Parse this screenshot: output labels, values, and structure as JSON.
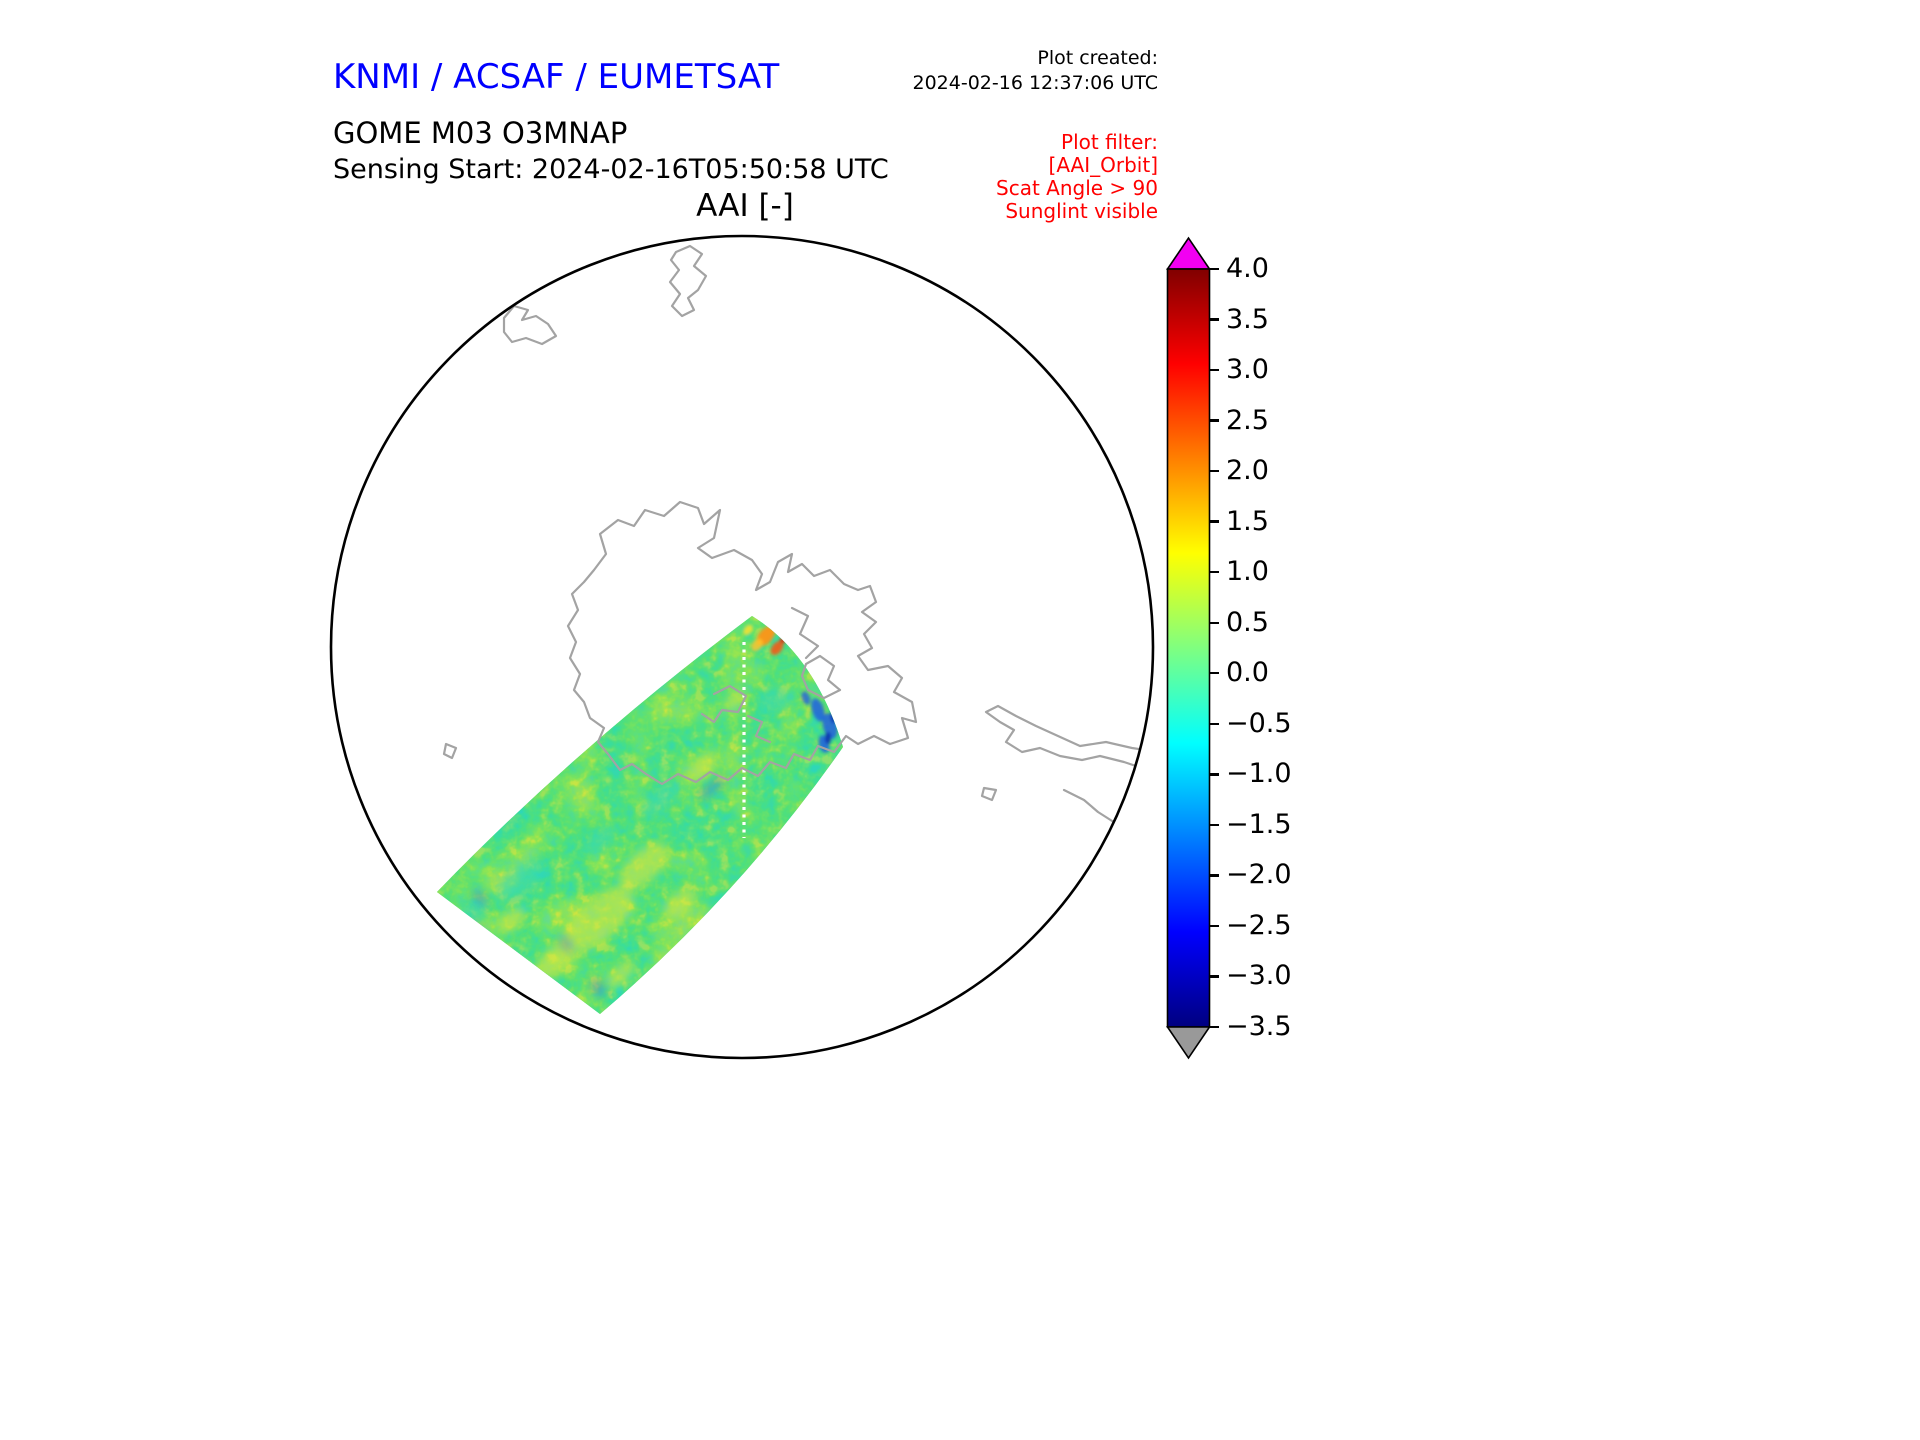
{
  "header": {
    "institution": "KNMI / ACSAF / EUMETSAT",
    "created_label": "Plot created:",
    "created_value": "2024-02-16 12:37:06 UTC",
    "product": "GOME M03 O3MNAP",
    "sensing_start": "Sensing Start: 2024-02-16T05:50:58 UTC"
  },
  "plot": {
    "title": "AAI [-]"
  },
  "filter_note": {
    "lines": [
      "Plot filter:",
      "[AAI_Orbit]",
      "Scat Angle > 90",
      "Sunglint visible"
    ],
    "color": "#ff0000"
  },
  "colors": {
    "institution_blue": "#0000ff",
    "filter_red": "#ff0000",
    "coastline_gray": "#a3a3a3",
    "map_outline": "#000000"
  },
  "chart_data": {
    "type": "heatmap",
    "title": "AAI [-]",
    "quantity": "AAI",
    "units": "-",
    "map": {
      "projection": "polar stereographic (circular disc)",
      "coastlines": true
    },
    "colorbar": {
      "orientation": "vertical-right",
      "min": -3.5,
      "max": 4.0,
      "tick_values": [
        4.0,
        3.5,
        3.0,
        2.5,
        2.0,
        1.5,
        1.0,
        0.5,
        0.0,
        -0.5,
        -1.0,
        -1.5,
        -2.0,
        -2.5,
        -3.0,
        -3.5
      ],
      "tick_labels": [
        "4.0",
        "3.5",
        "3.0",
        "2.5",
        "2.0",
        "1.5",
        "1.0",
        "0.5",
        "0.0",
        "−0.5",
        "−1.0",
        "−1.5",
        "−2.0",
        "−2.5",
        "−3.0",
        "−3.5"
      ],
      "over_arrow_color": "#f200f2",
      "under_arrow_color": "#999999",
      "colormap": "jet",
      "colormap_stops": [
        {
          "value": 4.0,
          "color": "#800000"
        },
        {
          "value": 3.06,
          "color": "#ff0000"
        },
        {
          "value": 1.19,
          "color": "#ffff00"
        },
        {
          "value": -0.69,
          "color": "#00ffff"
        },
        {
          "value": -2.56,
          "color": "#0000ff"
        },
        {
          "value": -3.5,
          "color": "#000080"
        }
      ]
    },
    "swath": {
      "description": "Single orbit swath crossing the disc diagonally from lower-left toward centre",
      "typical_value_range": [
        -1.0,
        1.5
      ],
      "high_feature_value_at_tip": 3.0,
      "low_feature_value_near_edge": -2.5,
      "missing_data_line": "thin white dashed along-track gap near centre of swath"
    }
  }
}
